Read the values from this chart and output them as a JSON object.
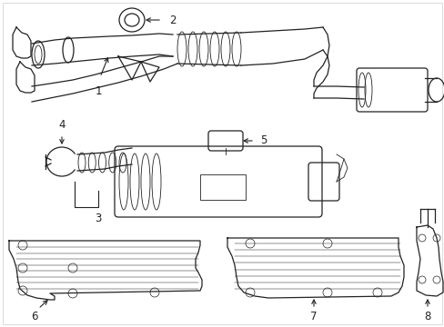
{
  "background_color": "#ffffff",
  "line_color": "#222222",
  "label_color": "#111111",
  "figsize": [
    4.89,
    3.6
  ],
  "dpi": 100,
  "border_color": "#cccccc"
}
